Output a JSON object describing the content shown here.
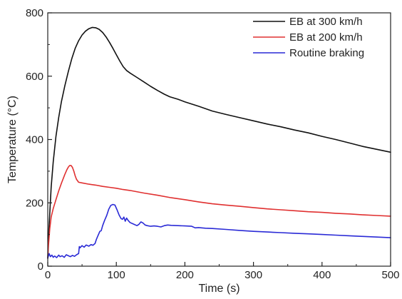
{
  "chart_data": {
    "type": "line",
    "xlabel": "Time (s)",
    "ylabel": "Temperature (°C)",
    "xlim": [
      0,
      500
    ],
    "ylim": [
      0,
      800
    ],
    "xticks": [
      0,
      100,
      200,
      300,
      400,
      500
    ],
    "yticks": [
      0,
      200,
      400,
      600,
      800
    ],
    "grid": false,
    "legend_position": "top-right",
    "series": [
      {
        "name": "EB at 300 km/h",
        "color": "#111111",
        "points": [
          [
            0,
            25
          ],
          [
            1,
            90
          ],
          [
            3,
            170
          ],
          [
            5,
            250
          ],
          [
            8,
            330
          ],
          [
            12,
            410
          ],
          [
            16,
            470
          ],
          [
            20,
            520
          ],
          [
            25,
            570
          ],
          [
            30,
            615
          ],
          [
            35,
            655
          ],
          [
            40,
            688
          ],
          [
            45,
            712
          ],
          [
            50,
            730
          ],
          [
            55,
            742
          ],
          [
            60,
            750
          ],
          [
            65,
            754
          ],
          [
            70,
            753
          ],
          [
            75,
            748
          ],
          [
            80,
            738
          ],
          [
            85,
            724
          ],
          [
            90,
            707
          ],
          [
            95,
            688
          ],
          [
            100,
            668
          ],
          [
            105,
            648
          ],
          [
            110,
            630
          ],
          [
            115,
            618
          ],
          [
            120,
            610
          ],
          [
            130,
            596
          ],
          [
            140,
            582
          ],
          [
            150,
            568
          ],
          [
            160,
            555
          ],
          [
            170,
            543
          ],
          [
            178,
            535
          ],
          [
            190,
            527
          ],
          [
            200,
            519
          ],
          [
            220,
            505
          ],
          [
            240,
            490
          ],
          [
            260,
            479
          ],
          [
            280,
            469
          ],
          [
            300,
            459
          ],
          [
            320,
            449
          ],
          [
            340,
            440
          ],
          [
            360,
            430
          ],
          [
            380,
            421
          ],
          [
            400,
            410
          ],
          [
            420,
            400
          ],
          [
            440,
            389
          ],
          [
            460,
            378
          ],
          [
            480,
            369
          ],
          [
            500,
            360
          ]
        ]
      },
      {
        "name": "EB at 200 km/h",
        "color": "#e03030",
        "points": [
          [
            0,
            25
          ],
          [
            1,
            65
          ],
          [
            3,
            120
          ],
          [
            5,
            155
          ],
          [
            8,
            182
          ],
          [
            12,
            210
          ],
          [
            16,
            238
          ],
          [
            20,
            262
          ],
          [
            25,
            290
          ],
          [
            28,
            305
          ],
          [
            30,
            313
          ],
          [
            32,
            318
          ],
          [
            34,
            318
          ],
          [
            36,
            312
          ],
          [
            38,
            300
          ],
          [
            40,
            285
          ],
          [
            42,
            274
          ],
          [
            45,
            265
          ],
          [
            50,
            263
          ],
          [
            60,
            259
          ],
          [
            70,
            256
          ],
          [
            80,
            252
          ],
          [
            90,
            249
          ],
          [
            100,
            246
          ],
          [
            110,
            242
          ],
          [
            120,
            239
          ],
          [
            140,
            231
          ],
          [
            160,
            224
          ],
          [
            180,
            216
          ],
          [
            200,
            210
          ],
          [
            220,
            203
          ],
          [
            240,
            197
          ],
          [
            260,
            193
          ],
          [
            280,
            189
          ],
          [
            300,
            185
          ],
          [
            320,
            181
          ],
          [
            340,
            178
          ],
          [
            360,
            175
          ],
          [
            380,
            172
          ],
          [
            400,
            170
          ],
          [
            420,
            167
          ],
          [
            440,
            165
          ],
          [
            460,
            162
          ],
          [
            480,
            160
          ],
          [
            500,
            158
          ]
        ]
      },
      {
        "name": "Routine braking",
        "color": "#2a2ad6",
        "points": [
          [
            0,
            25
          ],
          [
            2,
            40
          ],
          [
            4,
            30
          ],
          [
            6,
            35
          ],
          [
            8,
            28
          ],
          [
            10,
            32
          ],
          [
            13,
            27
          ],
          [
            16,
            35
          ],
          [
            18,
            30
          ],
          [
            21,
            33
          ],
          [
            24,
            28
          ],
          [
            27,
            36
          ],
          [
            30,
            33
          ],
          [
            33,
            30
          ],
          [
            36,
            34
          ],
          [
            39,
            31
          ],
          [
            42,
            36
          ],
          [
            45,
            40
          ],
          [
            46,
            62
          ],
          [
            47,
            58
          ],
          [
            50,
            65
          ],
          [
            53,
            60
          ],
          [
            56,
            67
          ],
          [
            60,
            63
          ],
          [
            63,
            68
          ],
          [
            66,
            66
          ],
          [
            69,
            72
          ],
          [
            71,
            85
          ],
          [
            73,
            95
          ],
          [
            76,
            110
          ],
          [
            78,
            112
          ],
          [
            80,
            128
          ],
          [
            83,
            145
          ],
          [
            86,
            160
          ],
          [
            89,
            180
          ],
          [
            92,
            192
          ],
          [
            95,
            195
          ],
          [
            98,
            193
          ],
          [
            101,
            178
          ],
          [
            104,
            162
          ],
          [
            107,
            150
          ],
          [
            109,
            148
          ],
          [
            111,
            155
          ],
          [
            113,
            142
          ],
          [
            115,
            152
          ],
          [
            117,
            145
          ],
          [
            120,
            138
          ],
          [
            125,
            133
          ],
          [
            130,
            128
          ],
          [
            133,
            132
          ],
          [
            136,
            140
          ],
          [
            139,
            136
          ],
          [
            142,
            130
          ],
          [
            145,
            128
          ],
          [
            150,
            126
          ],
          [
            155,
            127
          ],
          [
            160,
            126
          ],
          [
            165,
            124
          ],
          [
            170,
            128
          ],
          [
            175,
            130
          ],
          [
            180,
            129
          ],
          [
            190,
            128
          ],
          [
            200,
            127
          ],
          [
            210,
            126
          ],
          [
            215,
            121
          ],
          [
            220,
            122
          ],
          [
            230,
            120
          ],
          [
            240,
            119
          ],
          [
            260,
            116
          ],
          [
            280,
            113
          ],
          [
            300,
            110
          ],
          [
            320,
            108
          ],
          [
            340,
            106
          ],
          [
            360,
            104
          ],
          [
            380,
            102
          ],
          [
            400,
            100
          ],
          [
            420,
            98
          ],
          [
            440,
            96
          ],
          [
            460,
            94
          ],
          [
            480,
            92
          ],
          [
            500,
            90
          ]
        ]
      }
    ]
  }
}
